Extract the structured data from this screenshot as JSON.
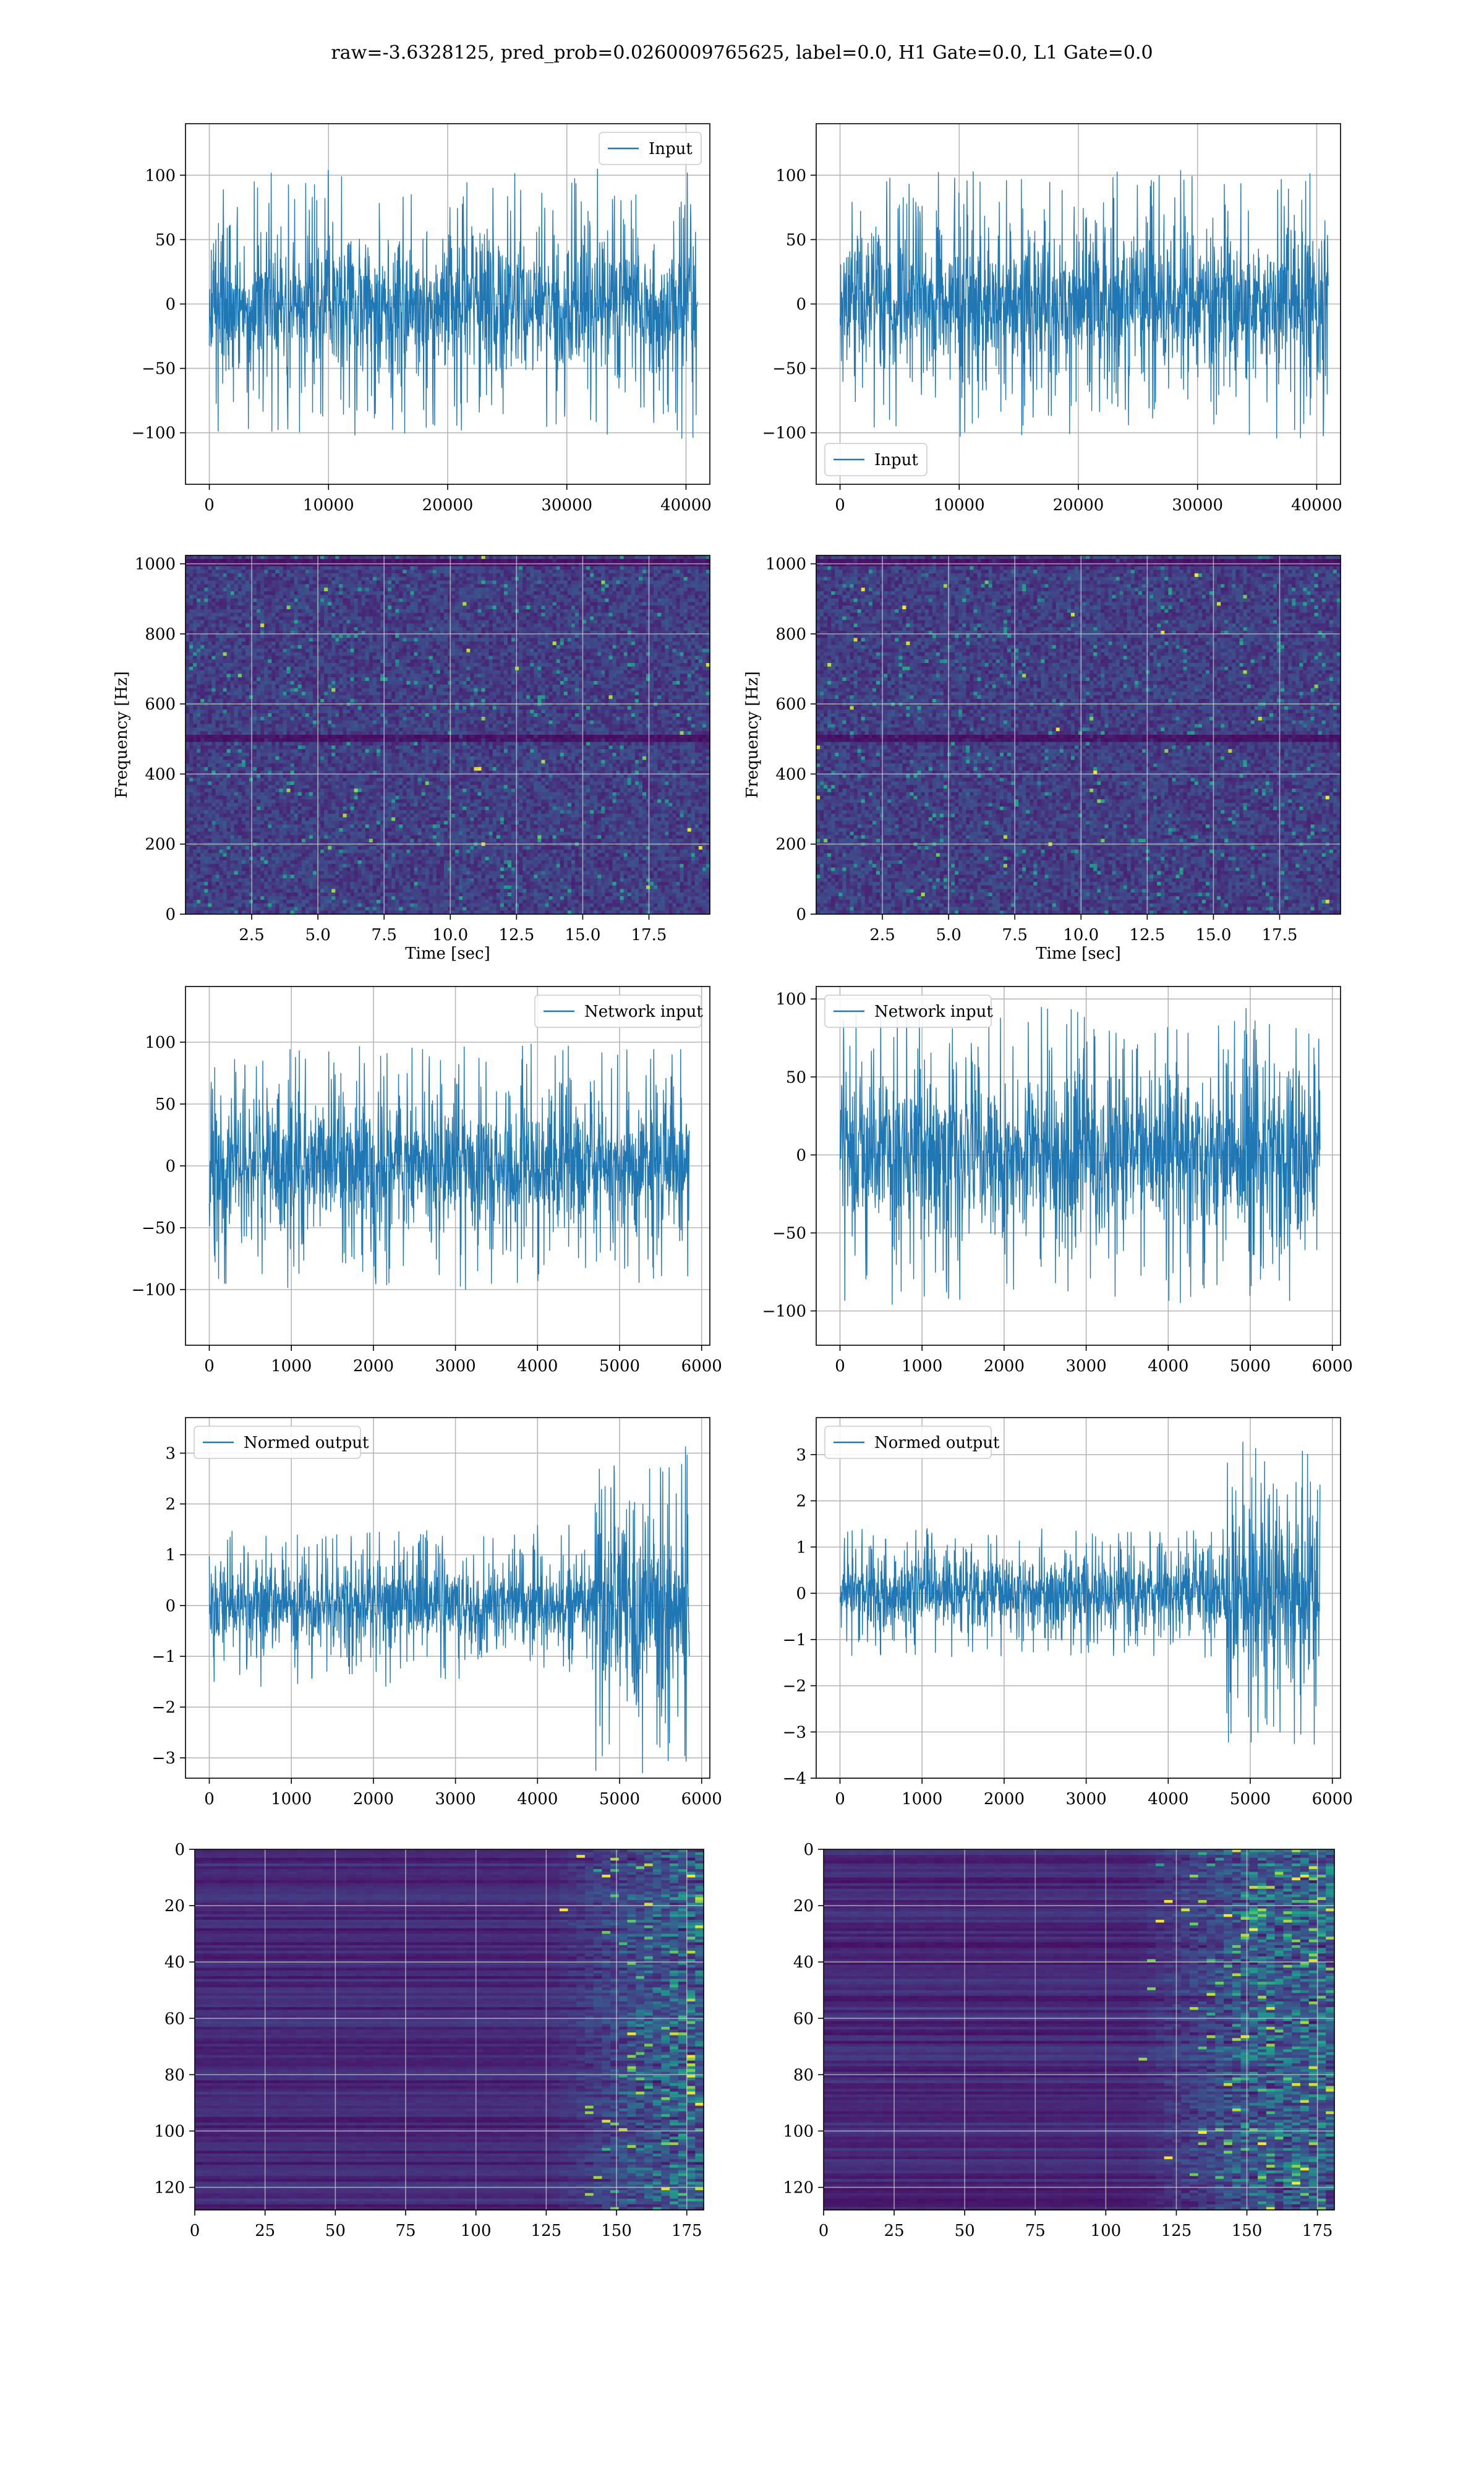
{
  "figure": {
    "title": "raw=-3.6328125, pred_prob=0.0260009765625, label=0.0, H1 Gate=0.0, L1 Gate=0.0"
  },
  "colors": {
    "line": "#1f77b4",
    "grid": "#b0b0b0",
    "viridis_dark": "#440154",
    "viridis_mid": "#21918c",
    "viridis_bright": "#fde725"
  },
  "chart_data": [
    {
      "id": "input-left",
      "type": "line",
      "legend": "Input",
      "legend_loc": "upper right",
      "xlim": [
        -2000,
        42000
      ],
      "ylim": [
        -140,
        140
      ],
      "xticks": [
        0,
        10000,
        20000,
        30000,
        40000
      ],
      "yticks": [
        -100,
        -50,
        0,
        50,
        100
      ],
      "x": [
        0,
        40960
      ],
      "envelope": {
        "inner": 45,
        "outer": 105,
        "min": -128,
        "max": 122
      },
      "series": [
        {
          "values_summary": "noise centered at 0"
        }
      ],
      "grid": true
    },
    {
      "id": "input-right",
      "type": "line",
      "legend": "Input",
      "legend_loc": "lower left",
      "xlim": [
        -2000,
        42000
      ],
      "ylim": [
        -140,
        140
      ],
      "xticks": [
        0,
        10000,
        20000,
        30000,
        40000
      ],
      "yticks": [
        -100,
        -50,
        0,
        50,
        100
      ],
      "x": [
        0,
        40960
      ],
      "envelope": {
        "inner": 45,
        "outer": 105,
        "min": -128,
        "max": 132
      },
      "series": [
        {
          "values_summary": "noise centered at 0"
        }
      ],
      "grid": true
    },
    {
      "id": "spec-left",
      "type": "heatmap",
      "xlabel": "Time [sec]",
      "ylabel": "Frequency [Hz]",
      "xlim": [
        0,
        19.8
      ],
      "ylim": [
        0,
        1024
      ],
      "xticks": [
        "2.5",
        "5.0",
        "7.5",
        "10.0",
        "12.5",
        "15.0",
        "17.5"
      ],
      "xtick_values": [
        2.5,
        5.0,
        7.5,
        10.0,
        12.5,
        15.0,
        17.5
      ],
      "yticks": [
        "0",
        "200",
        "400",
        "600",
        "800",
        "1000"
      ],
      "ytick_values": [
        0,
        200,
        400,
        600,
        800,
        1000
      ],
      "dark_band_hz": [
        500,
        1000
      ],
      "grid": true
    },
    {
      "id": "spec-right",
      "type": "heatmap",
      "xlabel": "Time [sec]",
      "ylabel": "Frequency [Hz]",
      "xlim": [
        0,
        19.8
      ],
      "ylim": [
        0,
        1024
      ],
      "xticks": [
        "2.5",
        "5.0",
        "7.5",
        "10.0",
        "12.5",
        "15.0",
        "17.5"
      ],
      "xtick_values": [
        2.5,
        5.0,
        7.5,
        10.0,
        12.5,
        15.0,
        17.5
      ],
      "yticks": [
        "0",
        "200",
        "400",
        "600",
        "800",
        "1000"
      ],
      "ytick_values": [
        0,
        200,
        400,
        600,
        800,
        1000
      ],
      "dark_band_hz": [
        500,
        1000
      ],
      "grid": true
    },
    {
      "id": "net-left",
      "type": "line",
      "legend": "Network input",
      "legend_loc": "upper right",
      "xlim": [
        -290,
        6100
      ],
      "ylim": [
        -145,
        145
      ],
      "xticks": [
        0,
        1000,
        2000,
        3000,
        4000,
        5000,
        6000
      ],
      "yticks": [
        -100,
        -50,
        0,
        50,
        100
      ],
      "x": [
        0,
        5850
      ],
      "envelope": {
        "inner": 42,
        "outer": 100,
        "min": -128,
        "max": 132
      },
      "series": [
        {
          "values_summary": "noise centered at 0"
        }
      ],
      "grid": true
    },
    {
      "id": "net-right",
      "type": "line",
      "legend": "Network input",
      "legend_loc": "upper left",
      "xlim": [
        -290,
        6100
      ],
      "ylim": [
        -122,
        108
      ],
      "xticks": [
        0,
        1000,
        2000,
        3000,
        4000,
        5000,
        6000
      ],
      "yticks": [
        -100,
        -50,
        0,
        50,
        100
      ],
      "x": [
        0,
        5850
      ],
      "envelope": {
        "inner": 42,
        "outer": 96,
        "min": -110,
        "max": 102
      },
      "series": [
        {
          "values_summary": "noise centered at 0"
        }
      ],
      "grid": true
    },
    {
      "id": "norm-left",
      "type": "line",
      "legend": "Normed output",
      "legend_loc": "upper left",
      "xlim": [
        -290,
        6100
      ],
      "ylim": [
        -3.4,
        3.7
      ],
      "xticks": [
        0,
        1000,
        2000,
        3000,
        4000,
        5000,
        6000
      ],
      "yticks": [
        -3,
        -2,
        -1,
        0,
        1,
        2,
        3
      ],
      "x": [
        0,
        5850
      ],
      "burst_start": 4700,
      "envelope": {
        "inner": 0.7,
        "outer": 1.6,
        "burst_inner": 1.6,
        "burst_outer": 3.3
      },
      "series": [
        {
          "values_summary": "noise, larger after x≈4700"
        }
      ],
      "grid": true
    },
    {
      "id": "norm-right",
      "type": "line",
      "legend": "Normed output",
      "legend_loc": "upper left",
      "xlim": [
        -290,
        6100
      ],
      "ylim": [
        -4.0,
        3.8
      ],
      "xticks": [
        0,
        1000,
        2000,
        3000,
        4000,
        5000,
        6000
      ],
      "yticks": [
        -4,
        -3,
        -2,
        -1,
        0,
        1,
        2,
        3
      ],
      "x": [
        0,
        5850
      ],
      "burst_start": 4700,
      "envelope": {
        "inner": 0.7,
        "outer": 1.4,
        "burst_inner": 1.5,
        "burst_outer": 3.3
      },
      "series": [
        {
          "values_summary": "noise, larger after x≈4700"
        }
      ],
      "grid": true
    },
    {
      "id": "feat-left",
      "type": "heatmap",
      "xlim": [
        0,
        181
      ],
      "ylim": [
        128,
        0
      ],
      "xticks": [
        0,
        25,
        50,
        75,
        100,
        125,
        150,
        175
      ],
      "yticks": [
        0,
        20,
        40,
        60,
        80,
        100,
        120
      ],
      "active_from_x": 140,
      "grid": true
    },
    {
      "id": "feat-right",
      "type": "heatmap",
      "xlim": [
        0,
        181
      ],
      "ylim": [
        128,
        0
      ],
      "xticks": [
        0,
        25,
        50,
        75,
        100,
        125,
        150,
        175
      ],
      "yticks": [
        0,
        20,
        40,
        60,
        80,
        100,
        120
      ],
      "active_from_x": 125,
      "grid": true
    }
  ]
}
